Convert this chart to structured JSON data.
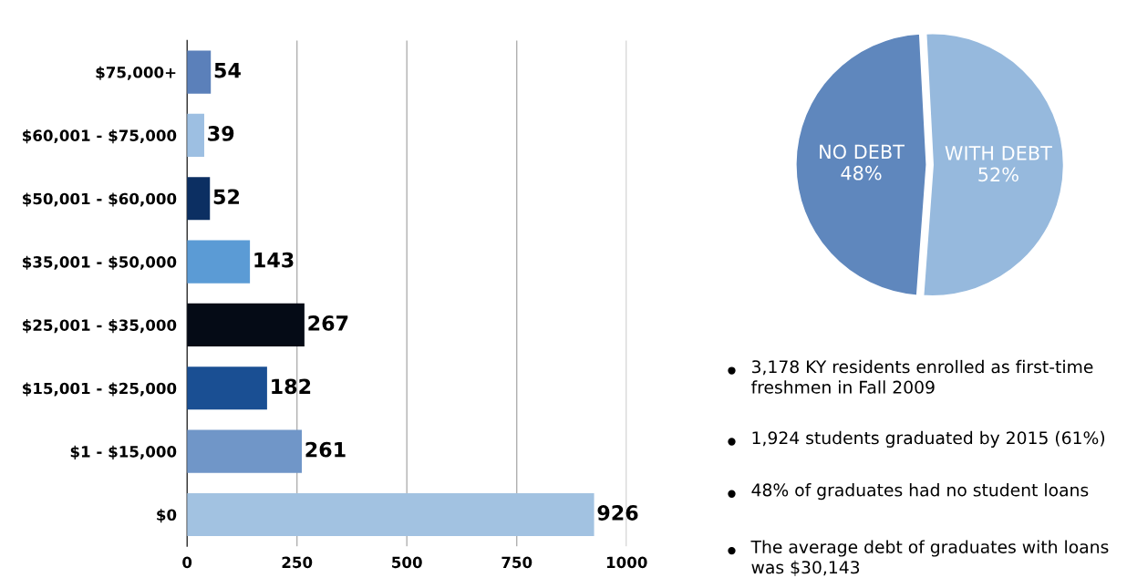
{
  "chart_data": [
    {
      "type": "bar",
      "orientation": "horizontal",
      "categories": [
        "$75,000+",
        "$60,001 - $75,000",
        "$50,001 - $60,000",
        "$35,001 - $50,000",
        "$25,001 - $35,000",
        "$15,001 - $25,000",
        "$1 - $15,000",
        "$0"
      ],
      "values": [
        54,
        39,
        52,
        143,
        267,
        182,
        261,
        926
      ],
      "colors": [
        "#5b80ba",
        "#9dbfe2",
        "#0c2f62",
        "#5b9bd5",
        "#050b16",
        "#1a4f93",
        "#7096c8",
        "#a2c2e1"
      ],
      "xlim": [
        0,
        1000
      ],
      "xticks": [
        0,
        250,
        500,
        750,
        1000
      ],
      "grid": "x",
      "data_labels": true
    },
    {
      "type": "pie",
      "categories": [
        "WITH DEBT",
        "NO DEBT"
      ],
      "values": [
        52,
        48
      ],
      "value_labels": [
        "52%",
        "48%"
      ],
      "colors": [
        "#96b9dd",
        "#5f87bd"
      ]
    },
    {
      "type": "other",
      "annotations": [
        "3,178 KY residents enrolled as first-time freshmen in Fall 2009",
        "1,924 students graduated by 2015 (61%)",
        "48% of graduates had no student loans",
        "The average debt of graduates with loans was $30,143"
      ]
    }
  ]
}
